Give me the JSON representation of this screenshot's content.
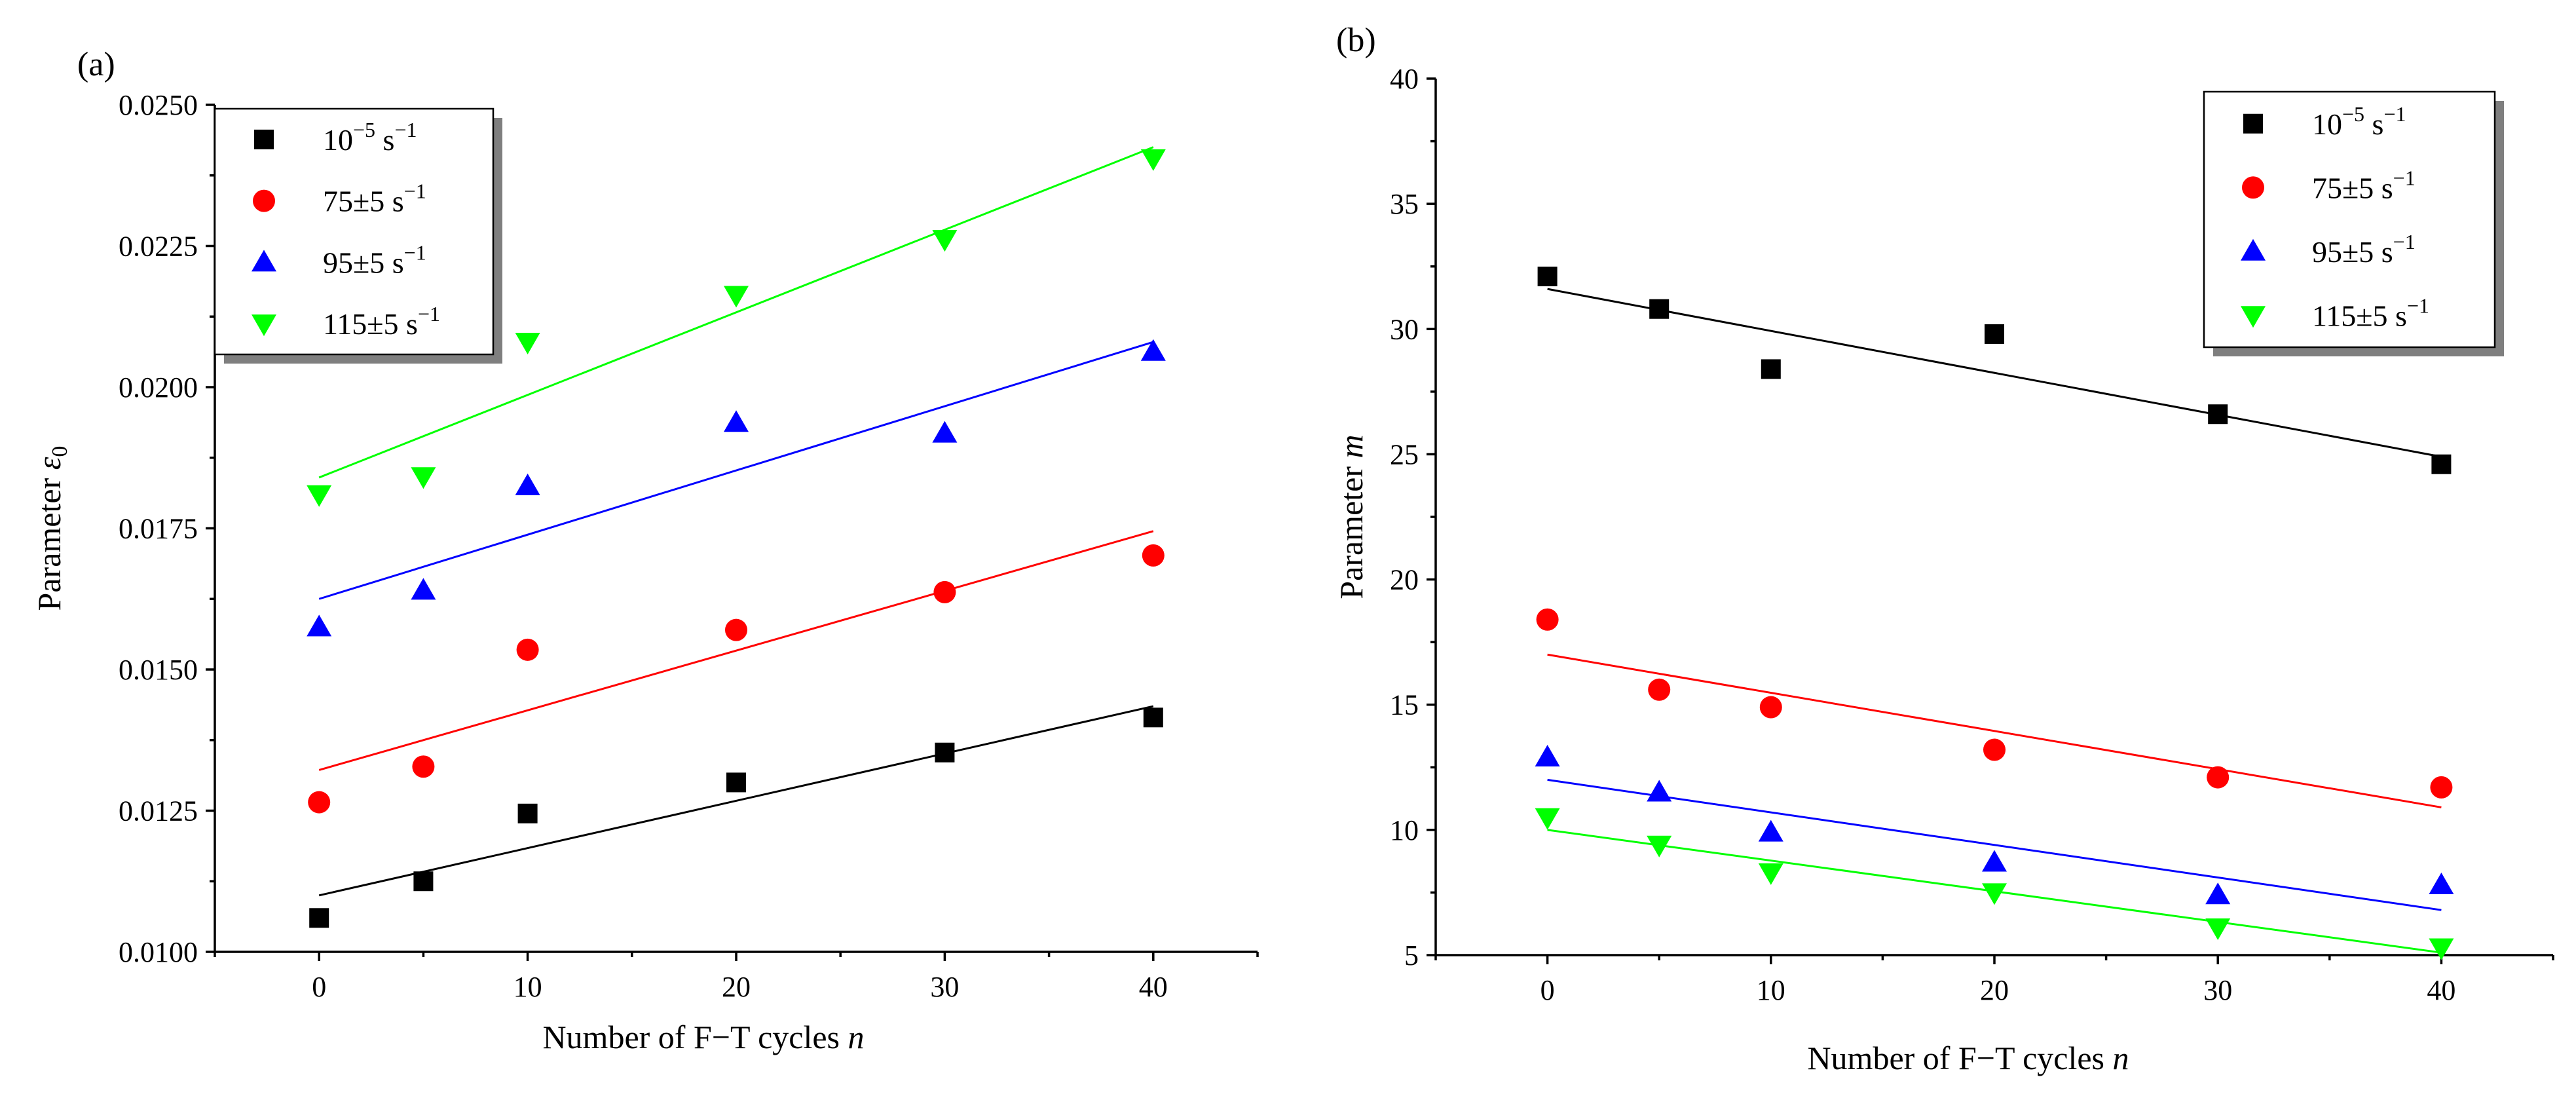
{
  "chart_data": [
    {
      "type": "scatter",
      "panel_label": "(a)",
      "xlabel": "Number of F−T cycles",
      "xlabel_var": "n",
      "ylabel": "Parameter",
      "ylabel_var": "ε",
      "ylabel_sub": "0",
      "xlim": [
        -5,
        45
      ],
      "ylim": [
        0.01,
        0.025
      ],
      "xticks": [
        0,
        10,
        20,
        30,
        40
      ],
      "xtick_labels": [
        "0",
        "10",
        "20",
        "30",
        "40"
      ],
      "yticks": [
        0.01,
        0.0125,
        0.015,
        0.0175,
        0.02,
        0.0225,
        0.025
      ],
      "ytick_labels": [
        "0.0100",
        "0.0125",
        "0.0150",
        "0.0175",
        "0.0200",
        "0.0225",
        "0.0250"
      ],
      "x": [
        0,
        5,
        10,
        20,
        30,
        40
      ],
      "legend_position": "top-left",
      "series": [
        {
          "name": "10⁻⁵ s⁻¹",
          "label_base": "10",
          "label_exp": "−5",
          "label_unit": "s",
          "label_unit_exp": "−1",
          "marker": "square",
          "color": "#000000",
          "values": [
            0.0106,
            0.01125,
            0.01245,
            0.013,
            0.01353,
            0.01415
          ],
          "fit": [
            0.011,
            0.01435
          ]
        },
        {
          "name": "75±5 s⁻¹",
          "label_base": "75±5",
          "label_exp": "",
          "label_unit": "s",
          "label_unit_exp": "−1",
          "marker": "circle",
          "color": "#ff0000",
          "values": [
            0.01265,
            0.01328,
            0.01535,
            0.0157,
            0.01637,
            0.01702
          ],
          "fit": [
            0.01322,
            0.01745
          ]
        },
        {
          "name": "95±5 s⁻¹",
          "label_base": "95±5",
          "label_exp": "",
          "label_unit": "s",
          "label_unit_exp": "−1",
          "marker": "triangle-up",
          "color": "#0000ff",
          "values": [
            0.01575,
            0.0164,
            0.01825,
            0.01937,
            0.01918,
            0.02063
          ],
          "fit": [
            0.01625,
            0.0208
          ]
        },
        {
          "name": "115±5 s⁻¹",
          "label_base": "115±5",
          "label_exp": "",
          "label_unit": "s",
          "label_unit_exp": "−1",
          "marker": "triangle-down",
          "color": "#00ff00",
          "values": [
            0.0181,
            0.01842,
            0.0208,
            0.02163,
            0.02262,
            0.02405
          ],
          "fit": [
            0.0184,
            0.02425
          ]
        }
      ]
    },
    {
      "type": "scatter",
      "panel_label": "(b)",
      "xlabel": "Number of F−T cycles",
      "xlabel_var": "n",
      "ylabel": "Parameter",
      "ylabel_var": "m",
      "ylabel_sub": "",
      "xlim": [
        -5,
        45
      ],
      "ylim": [
        5,
        40
      ],
      "xticks": [
        0,
        10,
        20,
        30,
        40
      ],
      "xtick_labels": [
        "0",
        "10",
        "20",
        "30",
        "40"
      ],
      "yticks": [
        5,
        10,
        15,
        20,
        25,
        30,
        35,
        40
      ],
      "ytick_labels": [
        "5",
        "10",
        "15",
        "20",
        "25",
        "30",
        "35",
        "40"
      ],
      "x": [
        0,
        5,
        10,
        20,
        30,
        40
      ],
      "legend_position": "top-right",
      "series": [
        {
          "name": "10⁻⁵ s⁻¹",
          "label_base": "10",
          "label_exp": "−5",
          "label_unit": "s",
          "label_unit_exp": "−1",
          "marker": "square",
          "color": "#000000",
          "values": [
            32.1,
            30.8,
            28.4,
            29.8,
            26.6,
            24.6
          ],
          "fit": [
            31.6,
            24.9
          ]
        },
        {
          "name": "75±5 s⁻¹",
          "label_base": "75±5",
          "label_exp": "",
          "label_unit": "s",
          "label_unit_exp": "−1",
          "marker": "circle",
          "color": "#ff0000",
          "values": [
            18.4,
            15.6,
            14.9,
            13.2,
            12.1,
            11.7
          ],
          "fit": [
            17.0,
            10.9
          ]
        },
        {
          "name": "95±5 s⁻¹",
          "label_base": "95±5",
          "label_exp": "",
          "label_unit": "s",
          "label_unit_exp": "−1",
          "marker": "triangle-up",
          "color": "#0000ff",
          "values": [
            12.9,
            11.5,
            9.9,
            8.7,
            7.4,
            7.8
          ],
          "fit": [
            12.0,
            6.8
          ]
        },
        {
          "name": "115±5 s⁻¹",
          "label_base": "115±5",
          "label_exp": "",
          "label_unit": "s",
          "label_unit_exp": "−1",
          "marker": "triangle-down",
          "color": "#00ff00",
          "values": [
            10.5,
            9.4,
            8.3,
            7.5,
            6.1,
            5.3
          ],
          "fit": [
            10.0,
            5.1
          ]
        }
      ]
    }
  ]
}
